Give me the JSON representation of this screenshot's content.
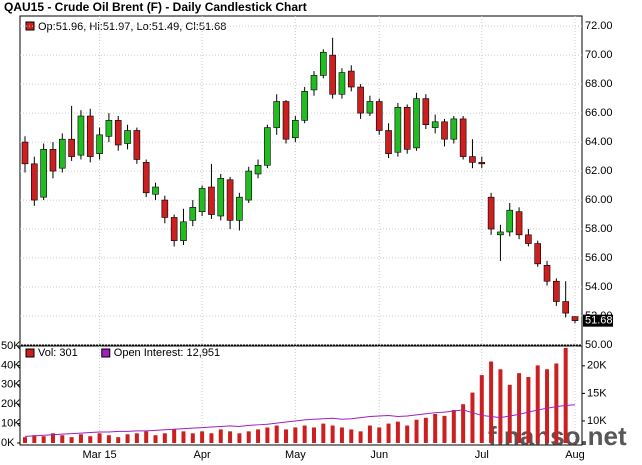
{
  "chart_data": [
    {
      "type": "candlestick",
      "title": "QAU15 - Crude Oil Brent (F) - Daily Candlestick Chart",
      "legend_text": "Op:51.96, Hi:51.97, Lo:51.49, Cl:51.68",
      "watermark": "finanso.net",
      "categories": [
        null,
        null,
        null,
        null,
        null,
        null,
        null,
        null,
        "Mar 15",
        null,
        null,
        null,
        null,
        null,
        null,
        null,
        null,
        null,
        null,
        "Apr",
        null,
        null,
        null,
        null,
        null,
        null,
        null,
        null,
        null,
        "May",
        null,
        null,
        null,
        null,
        null,
        null,
        null,
        null,
        "Jun",
        null,
        null,
        null,
        null,
        null,
        null,
        null,
        null,
        null,
        null,
        "Jul",
        null,
        null,
        null,
        null,
        null,
        null,
        null,
        null,
        null,
        "Aug"
      ],
      "open": [
        64.0,
        62.5,
        60.2,
        63.5,
        62.2,
        64.2,
        63.1,
        65.8,
        63.2,
        64.4,
        65.5,
        63.9,
        64.8,
        62.6,
        60.4,
        60.0,
        58.8,
        57.2,
        58.6,
        59.2,
        60.9,
        58.9,
        61.4,
        58.6,
        60.0,
        61.8,
        62.4,
        65.0,
        66.8,
        64.3,
        65.5,
        67.6,
        68.6,
        70.0,
        67.3,
        68.9,
        67.8,
        66.0,
        66.8,
        64.8,
        63.3,
        66.4,
        63.6,
        67.0,
        65.0,
        65.4,
        64.2,
        65.6,
        63.0,
        62.6,
        60.2,
        57.6,
        57.8,
        59.2,
        57.6,
        57.0,
        55.5,
        54.4,
        53.0,
        51.96
      ],
      "high": [
        64.4,
        63.0,
        63.9,
        64.0,
        64.6,
        66.5,
        66.2,
        66.3,
        65.0,
        66.0,
        65.8,
        65.2,
        65.0,
        62.8,
        61.2,
        60.3,
        59.0,
        59.4,
        60.0,
        61.0,
        62.5,
        61.8,
        61.6,
        60.5,
        62.3,
        62.8,
        65.2,
        67.3,
        66.9,
        65.8,
        67.8,
        68.9,
        70.4,
        71.2,
        69.1,
        69.3,
        68.0,
        67.2,
        67.0,
        65.3,
        66.7,
        66.6,
        67.4,
        67.3,
        65.9,
        65.6,
        65.8,
        65.8,
        64.2,
        63.0,
        60.5,
        58.3,
        59.8,
        59.5,
        58.0,
        57.2,
        55.8,
        54.6,
        54.4,
        51.97
      ],
      "low": [
        61.9,
        59.6,
        60.0,
        61.5,
        61.9,
        62.7,
        62.8,
        62.6,
        62.8,
        64.0,
        63.4,
        63.5,
        62.5,
        60.2,
        60.0,
        58.4,
        56.8,
        56.9,
        58.2,
        58.9,
        58.7,
        58.6,
        58.0,
        57.9,
        59.8,
        61.5,
        62.2,
        64.5,
        63.9,
        64.0,
        65.3,
        67.2,
        68.4,
        67.0,
        67.0,
        67.5,
        65.6,
        65.8,
        64.5,
        62.9,
        63.0,
        63.2,
        63.4,
        64.9,
        64.6,
        63.7,
        63.9,
        62.8,
        62.2,
        62.2,
        57.6,
        55.8,
        57.5,
        57.3,
        56.8,
        55.4,
        54.1,
        52.7,
        51.9,
        51.49
      ],
      "close": [
        62.5,
        60.0,
        63.5,
        62.0,
        64.2,
        63.0,
        65.8,
        63.0,
        64.5,
        65.5,
        63.8,
        64.8,
        62.8,
        60.5,
        60.9,
        58.8,
        57.2,
        58.5,
        59.5,
        60.8,
        59.0,
        61.5,
        58.6,
        60.2,
        62.0,
        62.4,
        65.0,
        66.8,
        64.2,
        65.5,
        67.5,
        68.6,
        70.2,
        67.3,
        68.8,
        67.8,
        66.0,
        66.8,
        64.8,
        63.2,
        66.4,
        63.5,
        67.0,
        65.2,
        65.4,
        64.2,
        65.6,
        63.0,
        62.6,
        62.5,
        58.0,
        57.8,
        59.3,
        57.6,
        57.0,
        55.6,
        54.4,
        53.0,
        52.2,
        51.68
      ],
      "up_color": "#22bb22",
      "down_color": "#cc1f1f",
      "ylim": [
        50,
        72.7
      ],
      "yticks": [
        {
          "value": 50,
          "label": "50.00"
        },
        {
          "value": 52,
          "label": "52.00"
        },
        {
          "value": 54,
          "label": "54.00"
        },
        {
          "value": 56,
          "label": "56.00"
        },
        {
          "value": 58,
          "label": "58.00"
        },
        {
          "value": 60,
          "label": "60.00"
        },
        {
          "value": 62,
          "label": "62.00"
        },
        {
          "value": 64,
          "label": "64.00"
        },
        {
          "value": 66,
          "label": "66.00"
        },
        {
          "value": 68,
          "label": "68.00"
        },
        {
          "value": 70,
          "label": "70.00"
        },
        {
          "value": 72,
          "label": "72.00"
        }
      ],
      "price_tag": 51.68,
      "grid": true
    },
    {
      "type": "bar",
      "series": [
        {
          "name": "Vol: 301",
          "color": "#cc1f1f",
          "values": [
            3000,
            4000,
            3500,
            5000,
            4000,
            3000,
            4500,
            3500,
            5000,
            4000,
            3000,
            4500,
            5000,
            6000,
            4000,
            5000,
            7000,
            6000,
            5000,
            6000,
            5000,
            7000,
            6000,
            5000,
            6000,
            7000,
            8000,
            9000,
            7000,
            8000,
            9000,
            8000,
            10000,
            9000,
            8000,
            7000,
            6000,
            9000,
            8000,
            10000,
            11000,
            9000,
            12000,
            13000,
            15000,
            14000,
            17000,
            20000,
            26000,
            35000,
            42000,
            38000,
            30000,
            36000,
            34000,
            40000,
            38000,
            41000,
            49000,
            301
          ]
        },
        {
          "name": "Open Interest: 12,951",
          "color": "#a020c0",
          "axis": "y2",
          "values": [
            7200,
            7300,
            7400,
            7500,
            7600,
            7700,
            7800,
            7900,
            8000,
            8000,
            8100,
            8100,
            8200,
            8200,
            8300,
            8400,
            8500,
            8600,
            8700,
            8800,
            8900,
            9000,
            9100,
            9000,
            9200,
            9300,
            9400,
            9600,
            9800,
            10000,
            10200,
            10300,
            10400,
            10500,
            10300,
            10400,
            10600,
            10800,
            10900,
            11000,
            10800,
            10900,
            11100,
            11300,
            11500,
            11600,
            11800,
            12000,
            11500,
            11000,
            10800,
            10600,
            10900,
            11200,
            11600,
            12000,
            12300,
            12600,
            12800,
            12951
          ]
        }
      ],
      "ylim": [
        0,
        50000
      ],
      "yticks": [
        {
          "value": 0,
          "label": "0K"
        },
        {
          "value": 10000,
          "label": "10K"
        },
        {
          "value": 20000,
          "label": "20K"
        },
        {
          "value": 30000,
          "label": "30K"
        },
        {
          "value": 40000,
          "label": "40K"
        },
        {
          "value": 50000,
          "label": "50K"
        }
      ],
      "y2lim": [
        6000,
        23600
      ],
      "y2ticks": [
        {
          "value": 10000,
          "label": "10K"
        },
        {
          "value": 15000,
          "label": "15K"
        },
        {
          "value": 20000,
          "label": "20K"
        }
      ]
    }
  ]
}
